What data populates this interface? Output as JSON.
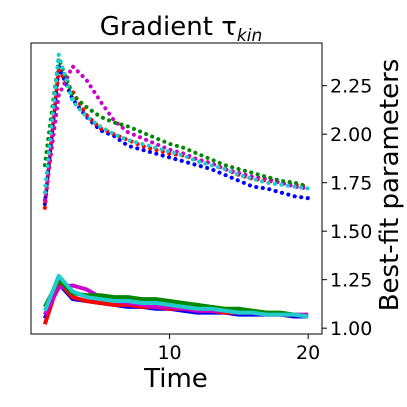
{
  "chart_data": {
    "type": "line",
    "title": "Gradient τ",
    "title_subscript": "kin",
    "xlabel": "Time",
    "ylabel": "Best-fit parameters",
    "y_axis_side": "right",
    "xlim": [
      0,
      21
    ],
    "ylim": [
      0.97,
      2.47
    ],
    "xticks": [
      10,
      20
    ],
    "yticks": [
      1.0,
      1.25,
      1.5,
      1.75,
      2.0,
      2.25
    ],
    "ytick_labels": [
      "1.00",
      "1.25",
      "1.50",
      "1.75",
      "2.00",
      "2.25"
    ],
    "grid": false,
    "legend": "none",
    "x": [
      1,
      2,
      3,
      4,
      5,
      6,
      7,
      8,
      9,
      10,
      11,
      12,
      13,
      14,
      15,
      16,
      17,
      18,
      19,
      20
    ],
    "series": [
      {
        "color": "#0000ff",
        "style": "dotted",
        "values": [
          1.64,
          2.35,
          2.18,
          2.09,
          2.02,
          1.99,
          1.94,
          1.92,
          1.9,
          1.88,
          1.86,
          1.84,
          1.82,
          1.79,
          1.76,
          1.73,
          1.72,
          1.7,
          1.68,
          1.67
        ]
      },
      {
        "color": "#ff0000",
        "style": "dotted",
        "values": [
          1.62,
          2.33,
          2.22,
          2.1,
          2.03,
          2.0,
          1.97,
          1.94,
          1.92,
          1.9,
          1.89,
          1.87,
          1.85,
          1.82,
          1.79,
          1.77,
          1.76,
          1.75,
          1.74,
          1.73
        ]
      },
      {
        "color": "#cc00cc",
        "style": "dotted",
        "values": [
          1.66,
          2.2,
          2.35,
          2.28,
          2.17,
          2.07,
          2.01,
          1.98,
          1.95,
          1.92,
          1.9,
          1.87,
          1.85,
          1.82,
          1.8,
          1.78,
          1.77,
          1.75,
          1.73,
          1.72
        ]
      },
      {
        "color": "#008800",
        "style": "dotted",
        "values": [
          1.84,
          2.39,
          2.2,
          2.14,
          2.09,
          2.06,
          2.04,
          2.01,
          1.98,
          1.95,
          1.93,
          1.9,
          1.87,
          1.84,
          1.82,
          1.8,
          1.78,
          1.76,
          1.75,
          1.73
        ]
      },
      {
        "color": "#22cccc",
        "style": "dotted",
        "values": [
          1.7,
          2.41,
          2.17,
          2.09,
          2.04,
          2.0,
          1.97,
          1.95,
          1.93,
          1.91,
          1.89,
          1.86,
          1.84,
          1.82,
          1.79,
          1.77,
          1.75,
          1.74,
          1.73,
          1.72
        ]
      },
      {
        "color": "#0000ff",
        "style": "solid",
        "values": [
          1.05,
          1.23,
          1.15,
          1.14,
          1.13,
          1.12,
          1.11,
          1.11,
          1.1,
          1.1,
          1.09,
          1.08,
          1.08,
          1.08,
          1.07,
          1.07,
          1.07,
          1.07,
          1.06,
          1.06
        ]
      },
      {
        "color": "#ff0000",
        "style": "solid",
        "values": [
          1.02,
          1.24,
          1.16,
          1.14,
          1.13,
          1.12,
          1.12,
          1.11,
          1.11,
          1.1,
          1.1,
          1.09,
          1.09,
          1.08,
          1.08,
          1.08,
          1.07,
          1.07,
          1.07,
          1.06
        ]
      },
      {
        "color": "#cc00cc",
        "style": "solid",
        "values": [
          1.07,
          1.21,
          1.22,
          1.2,
          1.16,
          1.14,
          1.13,
          1.12,
          1.11,
          1.11,
          1.1,
          1.09,
          1.09,
          1.09,
          1.08,
          1.08,
          1.08,
          1.07,
          1.07,
          1.07
        ]
      },
      {
        "color": "#008800",
        "style": "solid",
        "values": [
          1.11,
          1.25,
          1.18,
          1.17,
          1.17,
          1.16,
          1.16,
          1.15,
          1.15,
          1.14,
          1.13,
          1.12,
          1.11,
          1.1,
          1.1,
          1.09,
          1.08,
          1.08,
          1.07,
          1.06
        ]
      },
      {
        "color": "#22cccc",
        "style": "solid",
        "values": [
          1.09,
          1.27,
          1.19,
          1.16,
          1.15,
          1.14,
          1.14,
          1.13,
          1.13,
          1.12,
          1.11,
          1.1,
          1.1,
          1.09,
          1.08,
          1.08,
          1.07,
          1.07,
          1.07,
          1.06
        ]
      }
    ]
  }
}
